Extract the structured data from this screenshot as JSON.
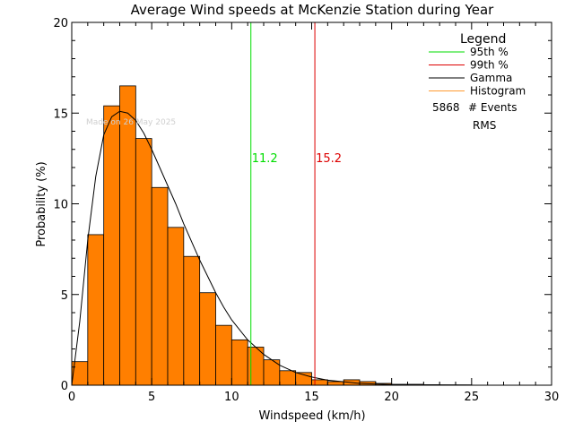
{
  "chart_data": {
    "type": "bar",
    "title": "Average Wind speeds at McKenzie Station during Year",
    "xlabel": "Windspeed (km/h)",
    "ylabel": "Probability (%)",
    "xlim": [
      0,
      30
    ],
    "ylim": [
      0,
      20
    ],
    "xticks": [
      0,
      5,
      10,
      15,
      20,
      25,
      30
    ],
    "yticks": [
      0,
      5,
      10,
      15,
      20
    ],
    "histogram": {
      "name": "Histogram",
      "color": "#ff7f00",
      "bin_width": 1,
      "bin_edges_start": [
        0,
        1,
        2,
        3,
        4,
        5,
        6,
        7,
        8,
        9,
        10,
        11,
        12,
        13,
        14,
        15,
        16,
        17,
        18,
        19,
        20,
        21,
        22,
        23,
        24,
        25,
        26,
        27,
        28,
        29
      ],
      "values": [
        1.3,
        8.3,
        15.4,
        16.5,
        13.6,
        10.9,
        8.7,
        7.1,
        5.1,
        3.3,
        2.5,
        2.1,
        1.4,
        0.8,
        0.7,
        0.3,
        0.2,
        0.3,
        0.2,
        0.1,
        0.05,
        0.05,
        0.03,
        0.02,
        0.02,
        0.0,
        0.0,
        0.0,
        0.0,
        0.0
      ]
    },
    "gamma_curve": {
      "name": "Gamma",
      "color": "#000000",
      "x": [
        0,
        0.5,
        1,
        1.5,
        2,
        2.5,
        3,
        3.5,
        4,
        4.5,
        5,
        5.5,
        6,
        6.5,
        7,
        7.5,
        8,
        8.5,
        9,
        9.5,
        10,
        11,
        12,
        13,
        14,
        15,
        16,
        18,
        20,
        25,
        30
      ],
      "y": [
        0,
        3.5,
        8.0,
        11.5,
        13.8,
        14.8,
        15.1,
        15.0,
        14.6,
        13.9,
        13.0,
        12.0,
        11.0,
        10.0,
        8.9,
        7.9,
        6.9,
        6.0,
        5.1,
        4.3,
        3.6,
        2.5,
        1.7,
        1.1,
        0.7,
        0.45,
        0.28,
        0.1,
        0.03,
        0.0,
        0.0
      ]
    },
    "percentile_lines": [
      {
        "name": "95th %",
        "value": 11.2,
        "label": "11.2",
        "color": "#00dd00"
      },
      {
        "name": "99th %",
        "value": 15.2,
        "label": "15.2",
        "color": "#dd0000"
      }
    ],
    "legend": {
      "title": "Legend",
      "position": "top-right",
      "entries": [
        {
          "label": "95th %",
          "color": "#00dd00"
        },
        {
          "label": "99th %",
          "color": "#dd0000"
        },
        {
          "label": "Gamma",
          "color": "#000000"
        },
        {
          "label": "Histogram",
          "color": "#ff9a30"
        }
      ],
      "events_count": "5868",
      "events_label": "# Events",
      "rms_label": "RMS"
    },
    "watermark": "Made on 26 May 2025",
    "grid": false
  }
}
